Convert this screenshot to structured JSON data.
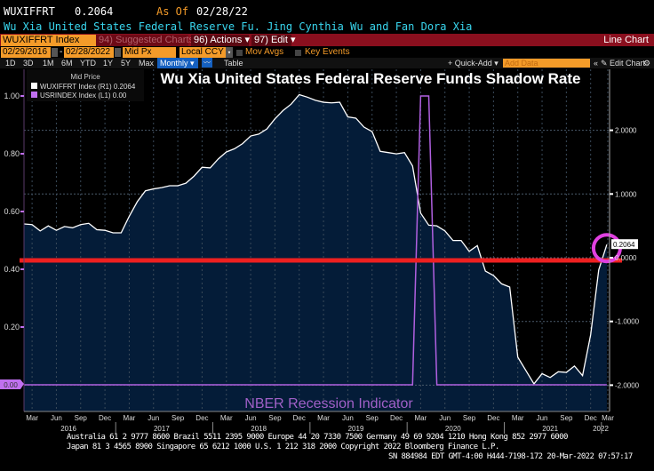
{
  "header": {
    "ticker": "WUXIFFRT",
    "last_value": "0.2064",
    "as_of_label": "As Of",
    "as_of_date": "02/28/22",
    "description": "Wu Xia United States Federal Reserve Fu. Jing Cynthia Wu and Fan Dora Xia"
  },
  "command_bar": {
    "security": "WUXIFFRT Index",
    "suggested": "94) Suggested Charts",
    "actions": "96) Actions ▾",
    "edit": "97) Edit ▾",
    "view": "Line Chart"
  },
  "controls": {
    "start_date": "02/29/2016",
    "end_date": "02/28/2022",
    "price": "Mid Px",
    "currency": "Local CCY",
    "mov_avgs": "Mov Avgs",
    "key_events": "Key Events"
  },
  "toolbar": {
    "ranges": [
      "1D",
      "3D",
      "1M",
      "6M",
      "YTD",
      "1Y",
      "5Y",
      "Max"
    ],
    "frequency": "Monthly ▾",
    "table": "Table",
    "quick_add": "+ Quick-Add ▾",
    "add_data_placeholder": "Add Data",
    "collapse": "«",
    "edit_chart": "✎ Edit Chart",
    "settings": "⚙"
  },
  "legend": {
    "title": "Mid Price",
    "items": [
      {
        "label": "WUXIFFRT Index  (R1) 0.2064",
        "color": "#ffffff"
      },
      {
        "label": "USRINDEX Index  (L1) 0.00",
        "color": "#c070f0"
      }
    ]
  },
  "annotations": {
    "title": "Wu Xia United States Federal Reserve Funds Shadow Rate",
    "recession_label": "NBER Recession Indicator",
    "red_line_color": "#ee2020",
    "circle_color": "#e040e0",
    "last_value_tag": "0.2064",
    "left_current_tag": "0.00"
  },
  "chart_data": {
    "type": "line",
    "x": [
      "2016-02",
      "2016-03",
      "2016-04",
      "2016-05",
      "2016-06",
      "2016-07",
      "2016-08",
      "2016-09",
      "2016-10",
      "2016-11",
      "2016-12",
      "2017-01",
      "2017-02",
      "2017-03",
      "2017-04",
      "2017-05",
      "2017-06",
      "2017-07",
      "2017-08",
      "2017-09",
      "2017-10",
      "2017-11",
      "2017-12",
      "2018-01",
      "2018-02",
      "2018-03",
      "2018-04",
      "2018-05",
      "2018-06",
      "2018-07",
      "2018-08",
      "2018-09",
      "2018-10",
      "2018-11",
      "2018-12",
      "2019-01",
      "2019-02",
      "2019-03",
      "2019-04",
      "2019-05",
      "2019-06",
      "2019-07",
      "2019-08",
      "2019-09",
      "2019-10",
      "2019-11",
      "2019-12",
      "2020-01",
      "2020-02",
      "2020-03",
      "2020-04",
      "2020-05",
      "2020-06",
      "2020-07",
      "2020-08",
      "2020-09",
      "2020-10",
      "2020-11",
      "2020-12",
      "2021-01",
      "2021-02",
      "2021-03",
      "2021-04",
      "2021-05",
      "2021-06",
      "2021-07",
      "2021-08",
      "2021-09",
      "2021-10",
      "2021-11",
      "2021-12",
      "2022-01",
      "2022-02"
    ],
    "series": [
      {
        "name": "WUXIFFRT Index",
        "axis": "right",
        "color": "#ffffff",
        "fill": "#041c38",
        "values": [
          0.53,
          0.52,
          0.42,
          0.5,
          0.43,
          0.49,
          0.47,
          0.52,
          0.54,
          0.44,
          0.43,
          0.39,
          0.39,
          0.65,
          0.88,
          1.05,
          1.08,
          1.1,
          1.13,
          1.13,
          1.17,
          1.28,
          1.42,
          1.41,
          1.55,
          1.66,
          1.71,
          1.79,
          1.91,
          1.94,
          2.02,
          2.18,
          2.31,
          2.41,
          2.56,
          2.52,
          2.47,
          2.44,
          2.43,
          2.44,
          2.21,
          2.19,
          2.05,
          1.98,
          1.67,
          1.65,
          1.63,
          1.65,
          1.44,
          0.7,
          0.51,
          0.5,
          0.42,
          0.27,
          0.27,
          0.1,
          0.19,
          -0.21,
          -0.28,
          -0.41,
          -0.46,
          -1.56,
          -1.77,
          -1.98,
          -1.82,
          -1.88,
          -1.79,
          -1.8,
          -1.7,
          -1.85,
          -1.21,
          -0.19,
          0.2064
        ]
      },
      {
        "name": "USRINDEX Index",
        "axis": "left",
        "color": "#b060e0",
        "values": [
          0,
          0,
          0,
          0,
          0,
          0,
          0,
          0,
          0,
          0,
          0,
          0,
          0,
          0,
          0,
          0,
          0,
          0,
          0,
          0,
          0,
          0,
          0,
          0,
          0,
          0,
          0,
          0,
          0,
          0,
          0,
          0,
          0,
          0,
          0,
          0,
          0,
          0,
          0,
          0,
          0,
          0,
          0,
          0,
          0,
          0,
          0,
          0,
          0,
          1,
          1,
          0,
          0,
          0,
          0,
          0,
          0,
          0,
          0,
          0,
          0,
          0,
          0,
          0,
          0,
          0,
          0,
          0,
          0,
          0,
          0,
          0,
          0
        ]
      }
    ],
    "left_axis": {
      "ticks": [
        "1.00",
        "0.80",
        "0.60",
        "0.40",
        "0.20",
        "0.00"
      ],
      "values": [
        1,
        0.8,
        0.6,
        0.4,
        0.2,
        0
      ],
      "range": [
        -0.09,
        1.07
      ]
    },
    "right_axis": {
      "ticks": [
        "2.0000",
        "1.0000",
        "0.0000",
        "-1.0000",
        "-2.0000"
      ],
      "values": [
        2,
        1,
        0,
        -1,
        -2
      ],
      "range": [
        -2.4,
        2.95
      ]
    },
    "x_month_labels": [
      "Mar",
      "Jun",
      "Sep",
      "Dec",
      "Mar",
      "Jun",
      "Sep",
      "Dec",
      "Mar",
      "Jun",
      "Sep",
      "Dec",
      "Mar",
      "Jun",
      "Sep",
      "Dec",
      "Mar",
      "Jun",
      "Sep",
      "Dec",
      "Mar",
      "Jun",
      "Sep",
      "Dec",
      "Mar"
    ],
    "x_year_labels": [
      "2016",
      "2017",
      "2018",
      "2019",
      "2020",
      "2021",
      "2022"
    ],
    "grid": true
  },
  "footer": {
    "line1": "Australia 61 2 9777 8600 Brazil 5511 2395 9000 Europe 44 20 7330 7500 Germany 49 69 9204 1210 Hong Kong 852 2977 6000",
    "line2": "Japan 81 3 4565 8900      Singapore 65 6212 1000      U.S. 1 212 318 2000         Copyright 2022 Bloomberg Finance L.P.",
    "line3": "SN 884984 EDT  GMT-4:00 H444-7198-172 20-Mar-2022 07:57:17"
  }
}
